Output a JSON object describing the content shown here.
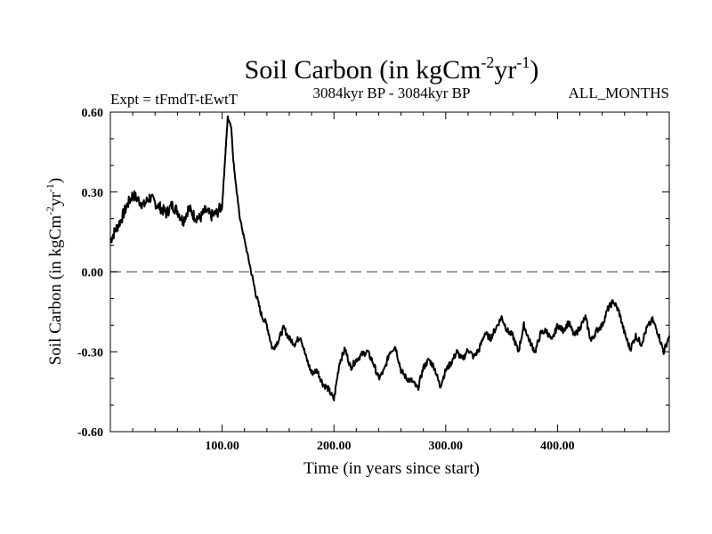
{
  "chart_data": {
    "type": "line",
    "title_main": "Soil Carbon (in kgCm",
    "title_sup1": "-2",
    "title_mid": "yr",
    "title_sup2": "-1",
    "title_end": ")",
    "subtitle_left": "Expt = tFmdT-tEwtT",
    "subtitle_center": "3084kyr BP - 3084kyr BP",
    "subtitle_right": "ALL_MONTHS",
    "xlabel": "Time (in years since start)",
    "ylabel_main": "Soil Carbon (in kgCm",
    "ylabel_sup1": "-2",
    "ylabel_mid": "yr",
    "ylabel_sup2": "-1",
    "ylabel_end": ")",
    "xlim": [
      0,
      500
    ],
    "ylim": [
      -0.6,
      0.6
    ],
    "x_ticks": [
      {
        "value": 100,
        "label": "100.00"
      },
      {
        "value": 200,
        "label": "200.00"
      },
      {
        "value": 300,
        "label": "300.00"
      },
      {
        "value": 400,
        "label": "400.00"
      }
    ],
    "y_ticks": [
      {
        "value": 0.6,
        "label": "0.60"
      },
      {
        "value": 0.3,
        "label": "0.30"
      },
      {
        "value": 0.0,
        "label": "0.00"
      },
      {
        "value": -0.3,
        "label": "-0.30"
      },
      {
        "value": -0.6,
        "label": "-0.60"
      }
    ],
    "zero_line": 0.0,
    "series": [
      {
        "name": "Soil Carbon",
        "color": "#000000",
        "x": [
          0,
          5,
          10,
          15,
          20,
          25,
          30,
          35,
          40,
          45,
          50,
          55,
          60,
          65,
          70,
          75,
          80,
          85,
          90,
          95,
          100,
          103,
          105,
          108,
          110,
          113,
          116,
          120,
          125,
          130,
          135,
          140,
          145,
          150,
          155,
          160,
          165,
          170,
          175,
          180,
          185,
          190,
          195,
          200,
          205,
          210,
          215,
          220,
          225,
          230,
          235,
          240,
          245,
          250,
          255,
          260,
          265,
          270,
          275,
          280,
          285,
          290,
          295,
          300,
          305,
          310,
          315,
          320,
          325,
          330,
          335,
          340,
          345,
          350,
          355,
          360,
          365,
          370,
          375,
          380,
          385,
          390,
          395,
          400,
          405,
          410,
          415,
          420,
          425,
          430,
          435,
          440,
          445,
          450,
          455,
          460,
          465,
          470,
          475,
          480,
          485,
          490,
          495,
          500
        ],
        "values": [
          0.12,
          0.16,
          0.2,
          0.25,
          0.29,
          0.27,
          0.25,
          0.28,
          0.26,
          0.24,
          0.22,
          0.25,
          0.23,
          0.19,
          0.24,
          0.21,
          0.2,
          0.23,
          0.21,
          0.22,
          0.25,
          0.45,
          0.58,
          0.55,
          0.42,
          0.3,
          0.2,
          0.12,
          0.02,
          -0.08,
          -0.16,
          -0.2,
          -0.29,
          -0.26,
          -0.21,
          -0.25,
          -0.27,
          -0.24,
          -0.32,
          -0.38,
          -0.37,
          -0.42,
          -0.44,
          -0.48,
          -0.34,
          -0.29,
          -0.36,
          -0.33,
          -0.31,
          -0.3,
          -0.34,
          -0.4,
          -0.37,
          -0.3,
          -0.28,
          -0.37,
          -0.4,
          -0.41,
          -0.44,
          -0.36,
          -0.33,
          -0.36,
          -0.43,
          -0.37,
          -0.34,
          -0.3,
          -0.33,
          -0.29,
          -0.32,
          -0.29,
          -0.23,
          -0.25,
          -0.21,
          -0.17,
          -0.22,
          -0.24,
          -0.3,
          -0.2,
          -0.26,
          -0.3,
          -0.23,
          -0.22,
          -0.26,
          -0.2,
          -0.22,
          -0.19,
          -0.24,
          -0.21,
          -0.17,
          -0.26,
          -0.22,
          -0.2,
          -0.14,
          -0.11,
          -0.15,
          -0.23,
          -0.29,
          -0.24,
          -0.27,
          -0.21,
          -0.18,
          -0.23,
          -0.3,
          -0.24
        ]
      }
    ]
  }
}
